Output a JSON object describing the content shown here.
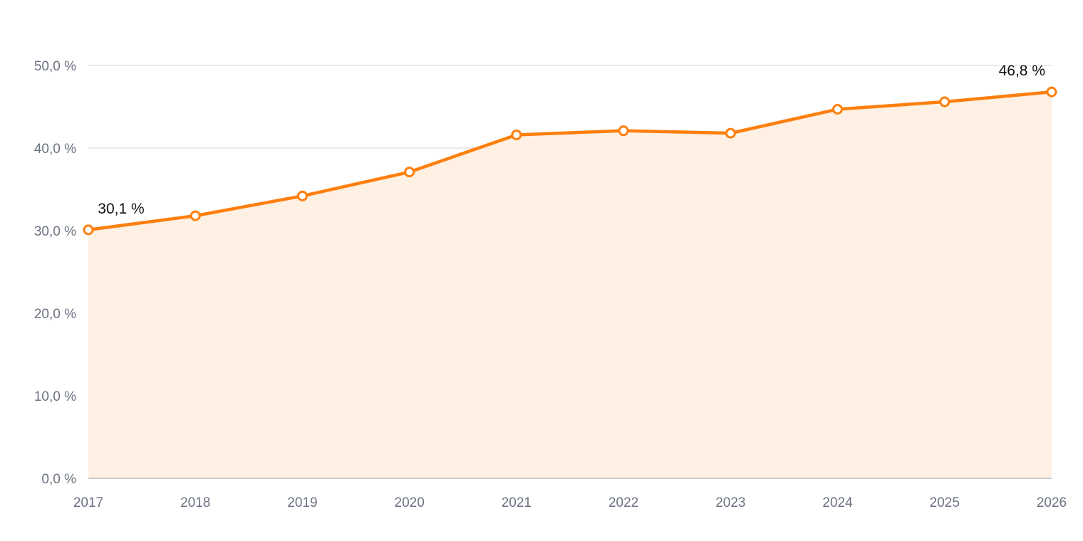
{
  "chart_data": {
    "type": "area",
    "title": "",
    "xlabel": "",
    "ylabel": "",
    "x": [
      "2017",
      "2018",
      "2019",
      "2020",
      "2021",
      "2022",
      "2023",
      "2024",
      "2025",
      "2026"
    ],
    "series": [
      {
        "values": [
          30.1,
          31.8,
          34.2,
          37.1,
          41.6,
          42.1,
          41.8,
          44.7,
          45.6,
          46.8
        ]
      }
    ],
    "ylim": [
      0,
      50
    ],
    "yticks": [
      0,
      10,
      20,
      30,
      40,
      50
    ],
    "ytick_labels": [
      "0,0 %",
      "10,0 %",
      "20,0 %",
      "30,0 %",
      "40,0 %",
      "50,0 %"
    ],
    "data_labels": [
      {
        "index": 0,
        "text": "30,1 %"
      },
      {
        "index": 9,
        "text": "46,8 %"
      }
    ],
    "grid": true,
    "legend": "none",
    "colors": {
      "line": "#ff7f0e",
      "fill": "#fef1e4",
      "grid": "#dddddd",
      "axis": "#c8c8c8",
      "tick_text": "#6b7280",
      "label_text": "#111111"
    }
  }
}
